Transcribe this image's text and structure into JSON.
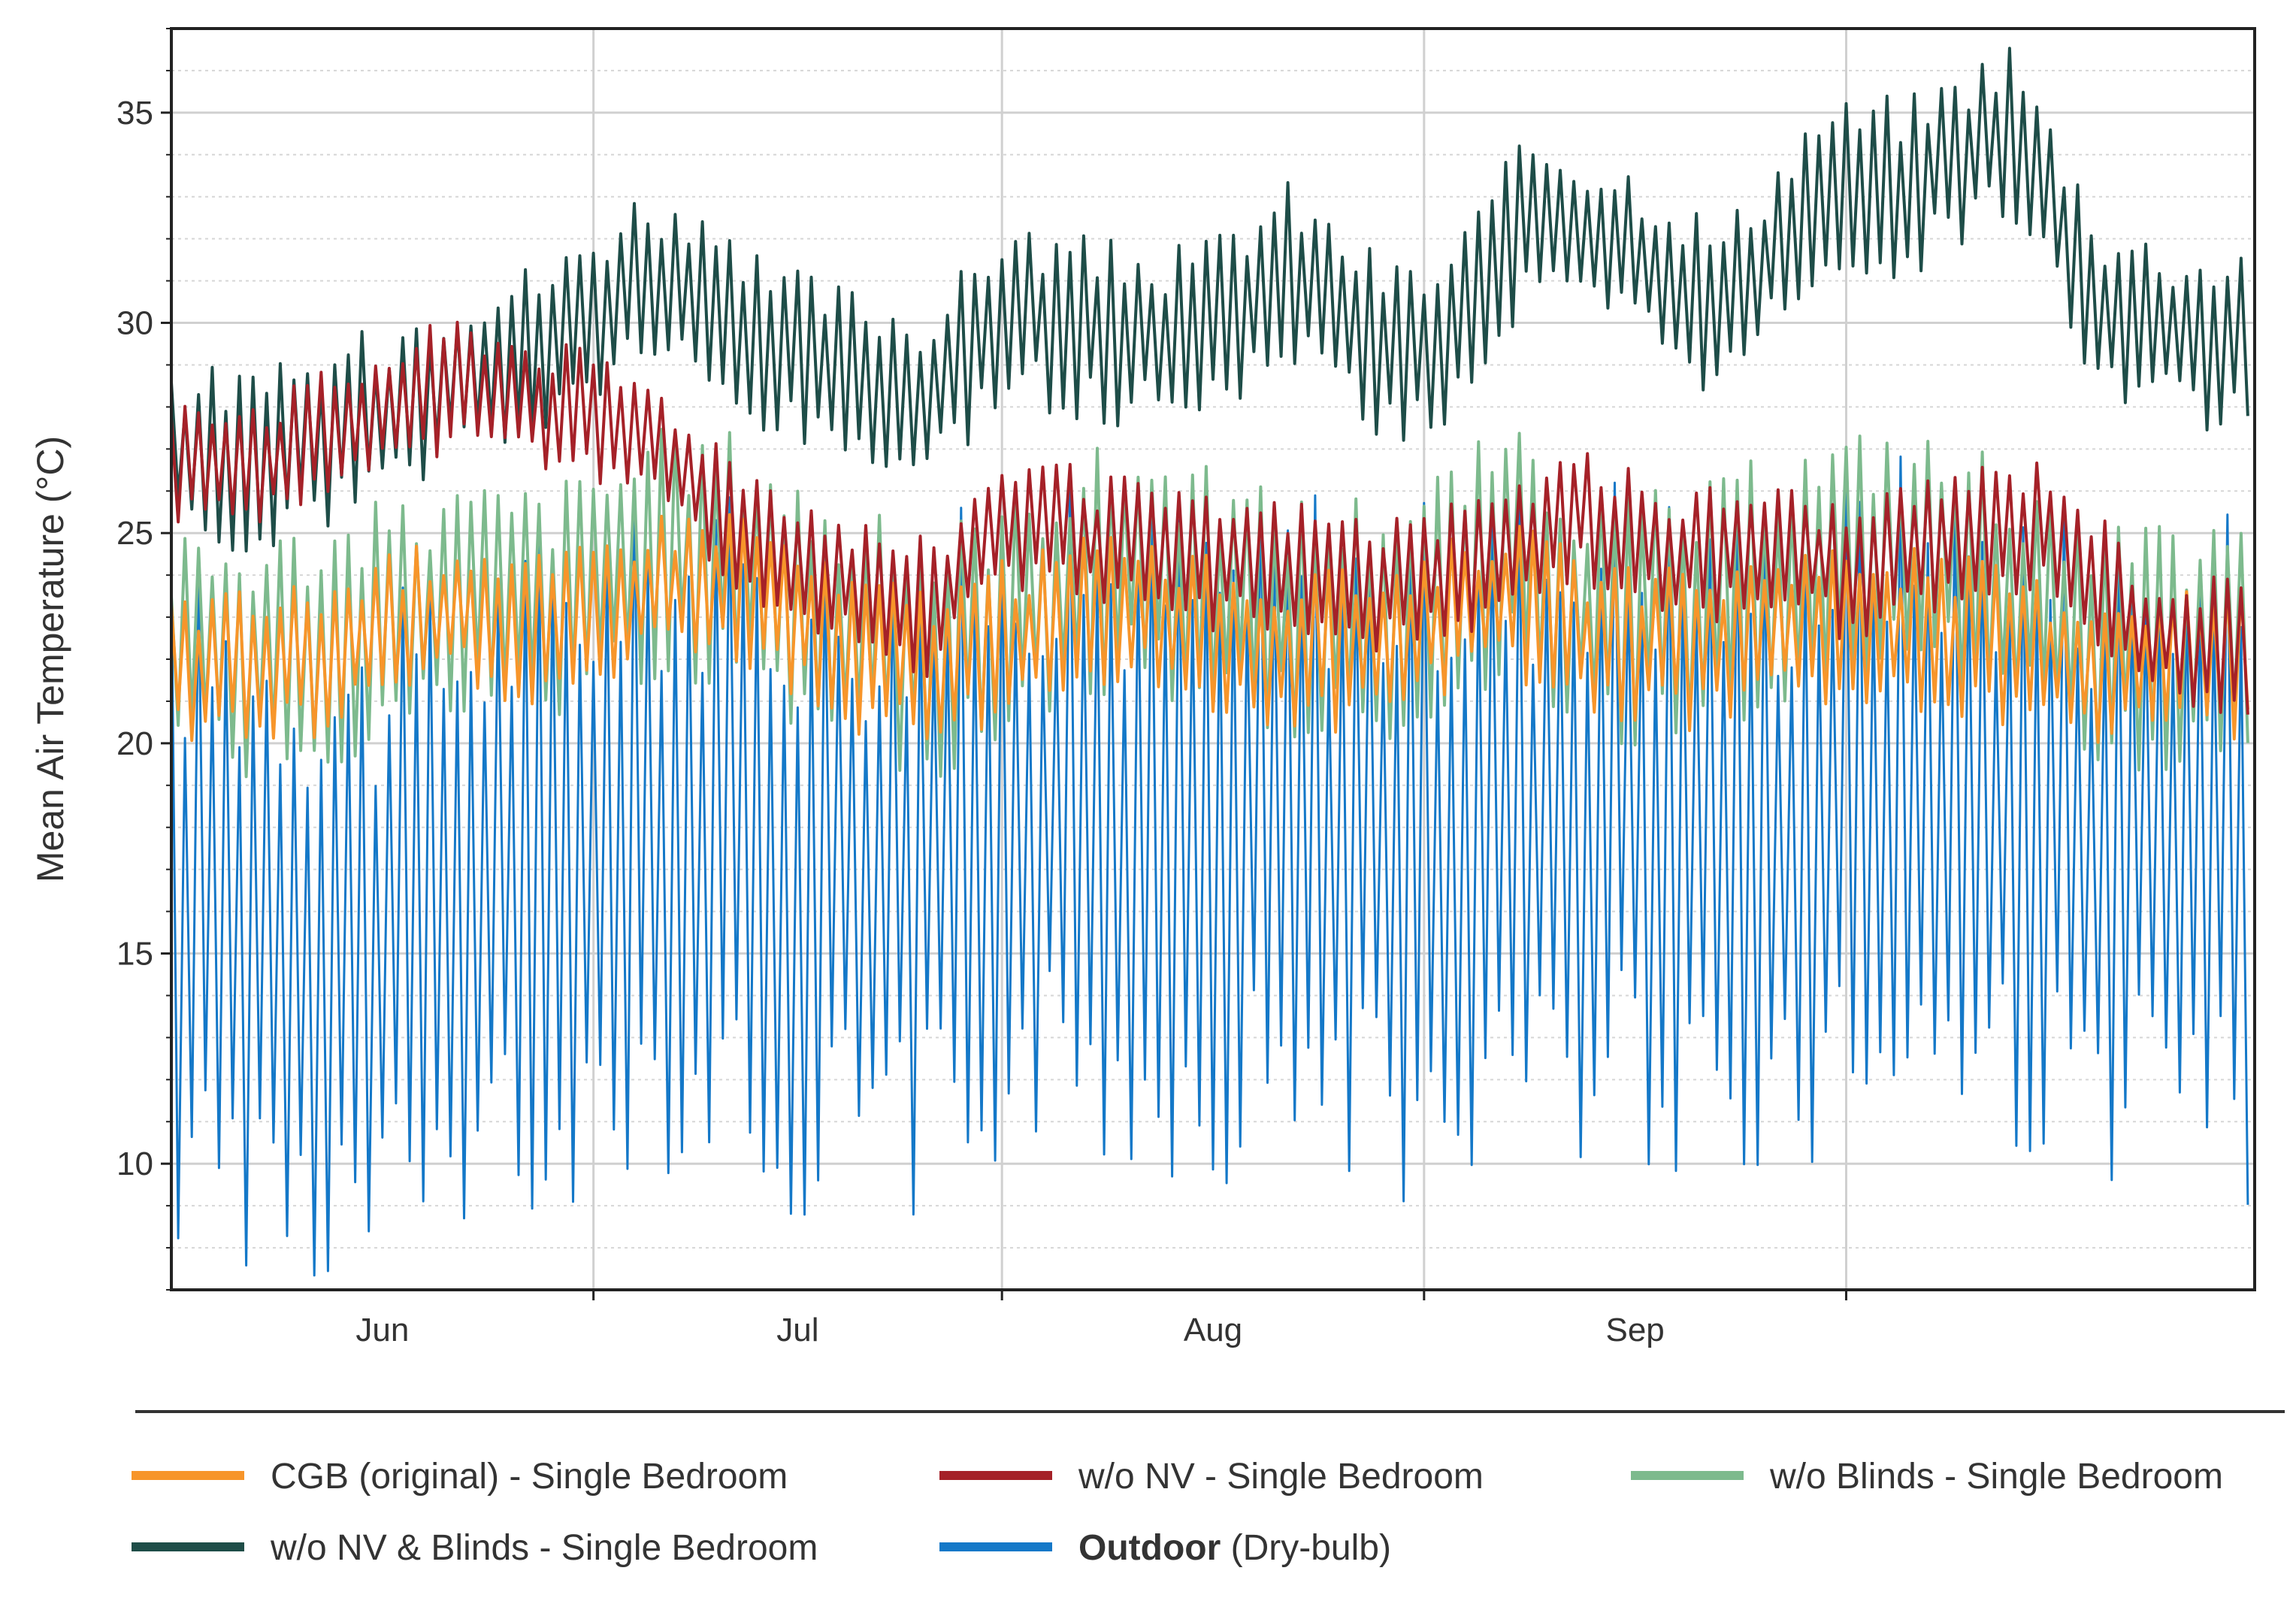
{
  "chart_data": {
    "type": "line",
    "title": "",
    "xlabel": "",
    "ylabel": "Mean Air Temperature (°C)",
    "x_start": "2023-05-01",
    "x_end": "2023-09-30",
    "x_ticks": [
      {
        "date": "2023-06-01",
        "label": "Jun",
        "gridline": "2023-06-01"
      },
      {
        "date": "2023-07-01",
        "label": "Jul",
        "gridline": "2023-07-01"
      },
      {
        "date": "2023-08-01",
        "label": "Aug",
        "gridline": "2023-08-01"
      },
      {
        "date": "2023-09-01",
        "label": "Sep",
        "gridline": "2023-09-01"
      }
    ],
    "ylim": [
      7,
      37
    ],
    "y_ticks": [
      10,
      15,
      20,
      25,
      30,
      35
    ],
    "grid": true,
    "legend_position": "bottom",
    "series": [
      {
        "name": "CGB (original) - Single Bedroom",
        "color": "#F7952A",
        "x": [
          "2023-05-01",
          "2023-05-08",
          "2023-05-15",
          "2023-05-22",
          "2023-05-29",
          "2023-06-05",
          "2023-06-12",
          "2023-06-19",
          "2023-06-26",
          "2023-07-03",
          "2023-07-10",
          "2023-07-17",
          "2023-07-24",
          "2023-07-31",
          "2023-08-07",
          "2023-08-14",
          "2023-08-21",
          "2023-08-28",
          "2023-09-04",
          "2023-09-11",
          "2023-09-18",
          "2023-09-25",
          "2023-09-30"
        ],
        "y": [
          21.7,
          21.8,
          22.3,
          23.2,
          22.5,
          23.6,
          23.8,
          22.2,
          21.9,
          22.6,
          23.4,
          22.4,
          22.1,
          22.6,
          23.5,
          22.3,
          22.2,
          22.9,
          22.8,
          22.5,
          21.8,
          21.9,
          22.0
        ],
        "daily_swing": 1.4
      },
      {
        "name": "w/o NV - Single Bedroom",
        "color": "#A52128",
        "x": [
          "2023-05-01",
          "2023-05-08",
          "2023-05-15",
          "2023-05-22",
          "2023-05-29",
          "2023-06-05",
          "2023-06-12",
          "2023-06-19",
          "2023-06-26",
          "2023-07-01",
          "2023-07-08",
          "2023-07-15",
          "2023-07-22",
          "2023-07-29",
          "2023-08-05",
          "2023-08-12",
          "2023-08-19",
          "2023-08-26",
          "2023-09-02",
          "2023-09-09",
          "2023-09-16",
          "2023-09-23",
          "2023-09-30"
        ],
        "y": [
          26.9,
          26.7,
          27.6,
          28.6,
          28.0,
          27.2,
          25.2,
          23.9,
          23.2,
          25.4,
          24.8,
          24.3,
          24.2,
          23.8,
          24.1,
          25.5,
          24.4,
          24.7,
          24.0,
          25.0,
          25.2,
          22.6,
          22.3
        ],
        "daily_swing": 1.2
      },
      {
        "name": "w/o Blinds - Single Bedroom",
        "color": "#7DBA8D",
        "x": [
          "2023-05-01",
          "2023-05-08",
          "2023-05-15",
          "2023-05-22",
          "2023-05-29",
          "2023-06-05",
          "2023-06-12",
          "2023-06-19",
          "2023-06-26",
          "2023-07-03",
          "2023-07-10",
          "2023-07-17",
          "2023-07-24",
          "2023-07-31",
          "2023-08-07",
          "2023-08-14",
          "2023-08-21",
          "2023-08-28",
          "2023-09-04",
          "2023-09-11",
          "2023-09-18",
          "2023-09-25",
          "2023-09-30"
        ],
        "y": [
          21.9,
          22.1,
          22.6,
          23.3,
          23.2,
          24.4,
          24.5,
          22.6,
          22.1,
          23.3,
          24.4,
          23.4,
          22.9,
          23.2,
          24.6,
          23.0,
          23.1,
          24.1,
          24.6,
          24.1,
          22.3,
          22.1,
          22.4
        ],
        "daily_swing": 2.2
      },
      {
        "name": "w/o NV & Blinds - Single Bedroom",
        "color": "#1E4D48",
        "x": [
          "2023-05-01",
          "2023-05-08",
          "2023-05-15",
          "2023-05-22",
          "2023-05-29",
          "2023-06-05",
          "2023-06-12",
          "2023-06-19",
          "2023-06-26",
          "2023-07-01",
          "2023-07-08",
          "2023-07-15",
          "2023-07-22",
          "2023-07-29",
          "2023-08-02",
          "2023-08-09",
          "2023-08-16",
          "2023-08-23",
          "2023-08-30",
          "2023-09-06",
          "2023-09-13",
          "2023-09-20",
          "2023-09-27",
          "2023-09-30"
        ],
        "y": [
          26.9,
          26.7,
          27.6,
          28.8,
          29.4,
          31.2,
          29.5,
          28.8,
          28.2,
          30.3,
          29.8,
          29.6,
          31.2,
          29.4,
          29.3,
          32.5,
          31.7,
          30.2,
          33.1,
          33.3,
          34.6,
          30.3,
          29.6,
          29.8
        ],
        "daily_swing": 1.6
      },
      {
        "name": "Outdoor (Dry-bulb)",
        "color": "#1478C8",
        "x": [
          "2023-05-01",
          "2023-05-08",
          "2023-05-15",
          "2023-05-22",
          "2023-05-29",
          "2023-06-05",
          "2023-06-12",
          "2023-06-19",
          "2023-06-26",
          "2023-07-03",
          "2023-07-10",
          "2023-07-17",
          "2023-07-24",
          "2023-07-31",
          "2023-08-07",
          "2023-08-14",
          "2023-08-21",
          "2023-08-28",
          "2023-09-04",
          "2023-09-11",
          "2023-09-18",
          "2023-09-25",
          "2023-09-30"
        ],
        "y": [
          16.3,
          15.5,
          14.8,
          16.0,
          17.2,
          18.0,
          17.5,
          16.8,
          17.0,
          18.4,
          17.8,
          17.6,
          18.3,
          17.3,
          17.9,
          18.6,
          18.0,
          17.8,
          18.9,
          18.5,
          17.7,
          17.6,
          17.2
        ],
        "daily_swing": 6.0
      }
    ]
  },
  "legend": {
    "rows": [
      [
        {
          "label": "CGB (original) - Single Bedroom",
          "color": "#F7952A"
        },
        {
          "label": "w/o NV - Single Bedroom",
          "color": "#A52128"
        },
        {
          "label": "w/o Blinds - Single Bedroom",
          "color": "#7DBA8D"
        }
      ],
      [
        {
          "label": "w/o NV & Blinds - Single Bedroom",
          "color": "#1E4D48"
        },
        {
          "label_bold": "Outdoor",
          "label": " (Dry-bulb)",
          "color": "#1478C8"
        }
      ]
    ]
  }
}
